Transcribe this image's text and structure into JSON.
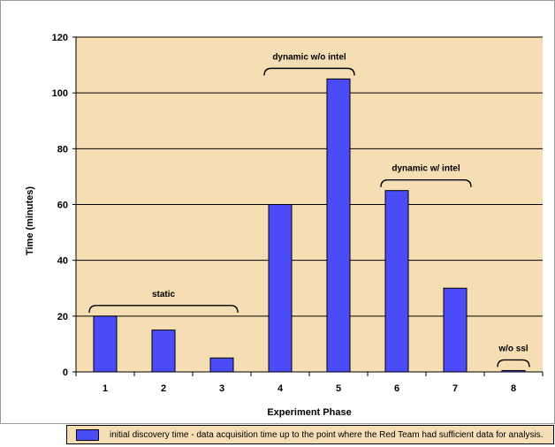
{
  "chart_data": {
    "type": "bar",
    "categories": [
      "1",
      "2",
      "3",
      "4",
      "5",
      "6",
      "7",
      "8"
    ],
    "series": [
      {
        "name": "initial discovery time - data acquisition time up to the point where the Red Team had sufficient data for analysis.",
        "values": [
          20,
          15,
          5,
          60,
          105,
          65,
          30,
          0.5
        ]
      }
    ],
    "xlabel": "Experiment Phase",
    "ylabel": "Time (minutes)",
    "ylim": [
      0,
      120
    ],
    "yticks": [
      0,
      20,
      40,
      60,
      80,
      100,
      120
    ],
    "grid": true,
    "legend": "bottom",
    "annotations": [
      {
        "label": "static",
        "from": "1",
        "to": "3"
      },
      {
        "label": "dynamic w/o intel",
        "from": "4",
        "to": "5"
      },
      {
        "label": "dynamic w/ intel",
        "from": "6",
        "to": "7"
      },
      {
        "label": "w/o ssl",
        "from": "8",
        "to": "8"
      }
    ]
  },
  "colors": {
    "bar": "#4b4bf7",
    "plot_bg": "#f5deb3",
    "grid": "#000000"
  }
}
